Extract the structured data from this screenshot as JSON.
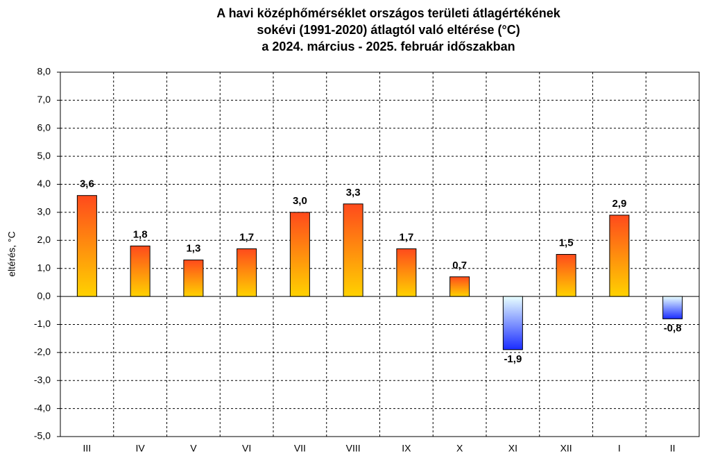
{
  "chart_data": {
    "type": "bar",
    "title": [
      "A  havi középhőmérséklet országos területi átlagértékének",
      "sokévi (1991-2020) átlagtól  való eltérése (°C)",
      "a 2024. március - 2025. február időszakban"
    ],
    "y_label": "eltérés, °C",
    "categories": [
      "III",
      "IV",
      "V",
      "VI",
      "VII",
      "VIII",
      "IX",
      "X",
      "XI",
      "XII",
      "I",
      "II"
    ],
    "values": [
      3.6,
      1.8,
      1.3,
      1.7,
      3.0,
      3.3,
      1.7,
      0.7,
      -1.9,
      1.5,
      2.9,
      -0.8
    ],
    "value_labels": [
      "3,6",
      "1,8",
      "1,3",
      "1,7",
      "3,0",
      "3,3",
      "1,7",
      "0,7",
      "-1,9",
      "1,5",
      "2,9",
      "-0,8"
    ],
    "positive_colors": [
      "#ff4a1c",
      "#ffd200"
    ],
    "negative_colors": [
      "#e8ffff",
      "#1a2cff"
    ],
    "ylim": [
      -5,
      8
    ],
    "yticks": [
      {
        "value": -5,
        "label": "-5,0"
      },
      {
        "value": -4,
        "label": "-4,0"
      },
      {
        "value": -3,
        "label": "-3,0"
      },
      {
        "value": -2,
        "label": "-2,0"
      },
      {
        "value": -1,
        "label": "-1,0"
      },
      {
        "value": 0,
        "label": "0,0"
      },
      {
        "value": 1,
        "label": "1,0"
      },
      {
        "value": 2,
        "label": "2,0"
      },
      {
        "value": 3,
        "label": "3,0"
      },
      {
        "value": 4,
        "label": "4,0"
      },
      {
        "value": 5,
        "label": "5,0"
      },
      {
        "value": 6,
        "label": "6,0"
      },
      {
        "value": 7,
        "label": "7,0"
      },
      {
        "value": 8,
        "label": "8,0"
      }
    ],
    "grid": true
  }
}
